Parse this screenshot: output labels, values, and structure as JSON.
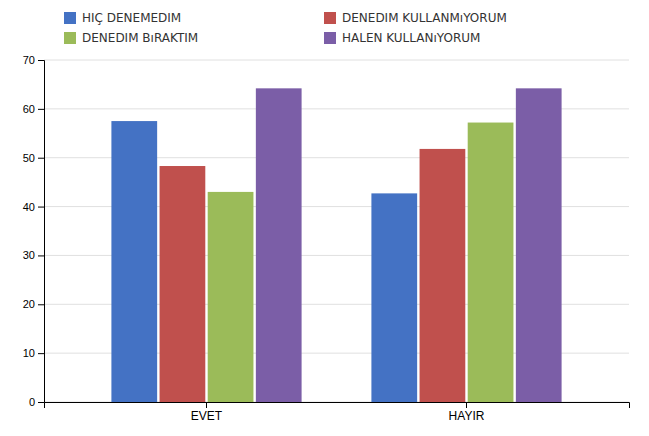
{
  "chart_data": {
    "type": "bar",
    "categories": [
      "EVET",
      "HAYIR"
    ],
    "series": [
      {
        "name": "HIÇ DENEMEDIM",
        "color": "#4472C4",
        "values": [
          57.5,
          42.7
        ]
      },
      {
        "name": "DENEDIM KULLANMıYORUM",
        "color": "#C0504D",
        "values": [
          48.3,
          51.8
        ]
      },
      {
        "name": "DENEDIM BıRAKTIM",
        "color": "#9BBB59",
        "values": [
          43.0,
          57.2
        ]
      },
      {
        "name": "HALEN KULLANıYORUM",
        "color": "#7B5EA7",
        "values": [
          64.2,
          64.2
        ]
      }
    ],
    "ylim": [
      0,
      70
    ],
    "yticks": [
      0,
      10,
      20,
      30,
      40,
      50,
      60,
      70
    ],
    "grid": true,
    "legend": "top"
  }
}
